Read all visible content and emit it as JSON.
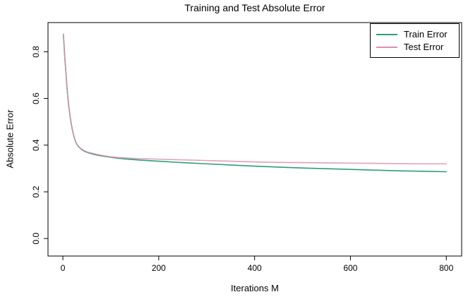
{
  "chart_data": {
    "type": "line",
    "title": "Training and Test Absolute Error",
    "xlabel": "Iterations M",
    "ylabel": "Absolute Error",
    "xlim": [
      -31,
      832
    ],
    "ylim": [
      -0.075,
      0.925
    ],
    "grid": false,
    "x_ticks": [
      {
        "v": 0,
        "label": "0"
      },
      {
        "v": 200,
        "label": "200"
      },
      {
        "v": 400,
        "label": "400"
      },
      {
        "v": 600,
        "label": "600"
      },
      {
        "v": 800,
        "label": "800"
      }
    ],
    "y_ticks": [
      {
        "v": 0.0,
        "label": "0.0"
      },
      {
        "v": 0.2,
        "label": "0.2"
      },
      {
        "v": 0.4,
        "label": "0.4"
      },
      {
        "v": 0.6,
        "label": "0.6"
      },
      {
        "v": 0.8,
        "label": "0.8"
      }
    ],
    "legend": {
      "position": "topright",
      "entries": [
        {
          "label": "Train Error",
          "color": "#2D9E78"
        },
        {
          "label": "Test Error",
          "color": "#DC8FB1"
        }
      ]
    },
    "x": [
      1,
      2,
      3,
      4,
      6,
      8,
      10,
      12,
      15,
      17,
      20,
      23,
      27,
      31,
      35,
      40,
      45,
      52,
      60,
      70,
      80,
      90,
      100,
      115,
      130,
      160,
      200,
      250,
      300,
      350,
      400,
      450,
      500,
      550,
      600,
      650,
      700,
      750,
      800
    ],
    "series": [
      {
        "name": "Train Error",
        "color": "#2D9E78",
        "values": [
          0.875,
          0.845,
          0.81,
          0.775,
          0.722,
          0.664,
          0.613,
          0.573,
          0.524,
          0.497,
          0.464,
          0.438,
          0.412,
          0.398,
          0.389,
          0.38,
          0.374,
          0.368,
          0.363,
          0.358,
          0.354,
          0.351,
          0.348,
          0.344,
          0.341,
          0.336,
          0.331,
          0.325,
          0.32,
          0.315,
          0.31,
          0.306,
          0.302,
          0.299,
          0.296,
          0.293,
          0.29,
          0.288,
          0.286
        ]
      },
      {
        "name": "Test Error",
        "color": "#DC8FB1",
        "values": [
          0.875,
          0.845,
          0.81,
          0.775,
          0.722,
          0.664,
          0.613,
          0.573,
          0.524,
          0.497,
          0.464,
          0.438,
          0.412,
          0.399,
          0.39,
          0.382,
          0.376,
          0.37,
          0.366,
          0.361,
          0.357,
          0.353,
          0.35,
          0.347,
          0.345,
          0.342,
          0.34,
          0.337,
          0.334,
          0.331,
          0.328,
          0.326,
          0.325,
          0.324,
          0.323,
          0.322,
          0.321,
          0.32,
          0.32
        ]
      }
    ],
    "colors": {
      "axis": "#000000",
      "background": "#ffffff"
    }
  }
}
